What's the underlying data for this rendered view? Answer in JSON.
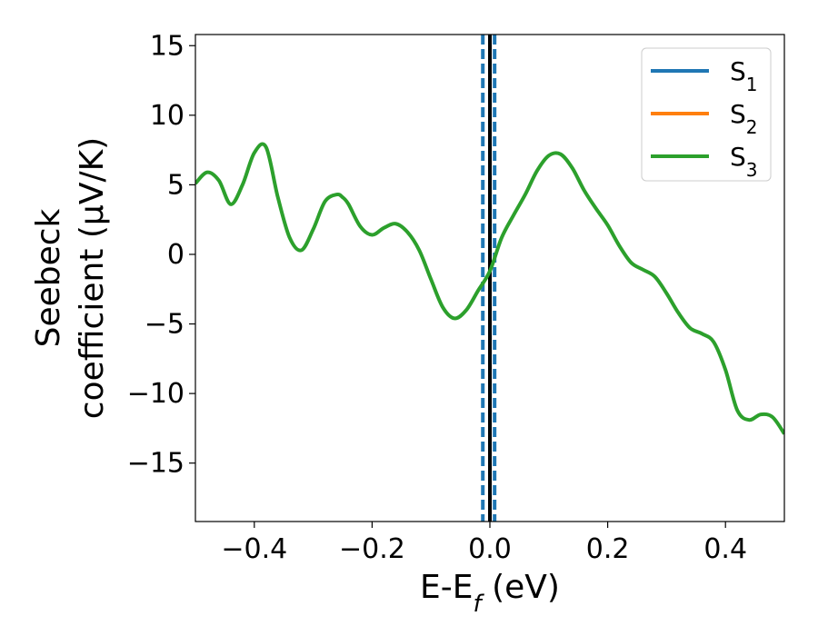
{
  "chart_data": {
    "type": "line",
    "xlabel": "E-E",
    "xlabel_sub": "f",
    "xlabel_unit": " (eV)",
    "ylabel_line1": "Seebeck",
    "ylabel_line2": "coefficient  (μV/K)",
    "xlim": [
      -0.5,
      0.5
    ],
    "ylim": [
      -19.2,
      15.8
    ],
    "xticks": [
      -0.4,
      -0.2,
      0.0,
      0.2,
      0.4
    ],
    "xtick_labels": [
      "−0.4",
      "−0.2",
      "0.0",
      "0.2",
      "0.4"
    ],
    "yticks": [
      -15,
      -10,
      -5,
      0,
      5,
      10,
      15
    ],
    "ytick_labels": [
      "−15",
      "−10",
      "−5",
      "0",
      "5",
      "10",
      "15"
    ],
    "grid": false,
    "legend_position": "top-right",
    "series": [
      {
        "name": "S",
        "sub": "1",
        "color": "#1f77b4",
        "x": [],
        "y": []
      },
      {
        "name": "S",
        "sub": "2",
        "color": "#ff7f0e",
        "x": [],
        "y": []
      },
      {
        "name": "S",
        "sub": "3",
        "color": "#2ca02c",
        "x": [
          -0.5,
          -0.48,
          -0.46,
          -0.44,
          -0.42,
          -0.4,
          -0.38,
          -0.36,
          -0.34,
          -0.32,
          -0.3,
          -0.28,
          -0.26,
          -0.25,
          -0.24,
          -0.22,
          -0.2,
          -0.18,
          -0.16,
          -0.14,
          -0.12,
          -0.1,
          -0.08,
          -0.06,
          -0.04,
          -0.02,
          0.0,
          0.02,
          0.04,
          0.06,
          0.08,
          0.1,
          0.12,
          0.14,
          0.16,
          0.18,
          0.2,
          0.22,
          0.24,
          0.26,
          0.28,
          0.3,
          0.32,
          0.34,
          0.36,
          0.38,
          0.4,
          0.42,
          0.44,
          0.46,
          0.48,
          0.5
        ],
        "y": [
          5.1,
          5.9,
          5.3,
          3.6,
          5.0,
          7.3,
          7.7,
          4.1,
          1.2,
          0.3,
          1.8,
          3.8,
          4.3,
          4.1,
          3.6,
          2.0,
          1.4,
          1.9,
          2.2,
          1.6,
          0.3,
          -1.8,
          -3.8,
          -4.6,
          -4.0,
          -2.6,
          -1.2,
          1.2,
          2.8,
          4.3,
          6.0,
          7.1,
          7.2,
          6.2,
          4.6,
          3.3,
          2.1,
          0.6,
          -0.6,
          -1.1,
          -1.6,
          -2.8,
          -4.2,
          -5.3,
          -5.7,
          -6.3,
          -8.3,
          -11.2,
          -11.9,
          -11.5,
          -11.7,
          -12.9
        ]
      }
    ],
    "vlines": [
      {
        "x": 0.0,
        "color": "#000000",
        "style": "solid"
      },
      {
        "x": -0.012,
        "color": "#1f77b4",
        "style": "dashed"
      },
      {
        "x": 0.008,
        "color": "#1f77b4",
        "style": "dashed"
      }
    ]
  }
}
